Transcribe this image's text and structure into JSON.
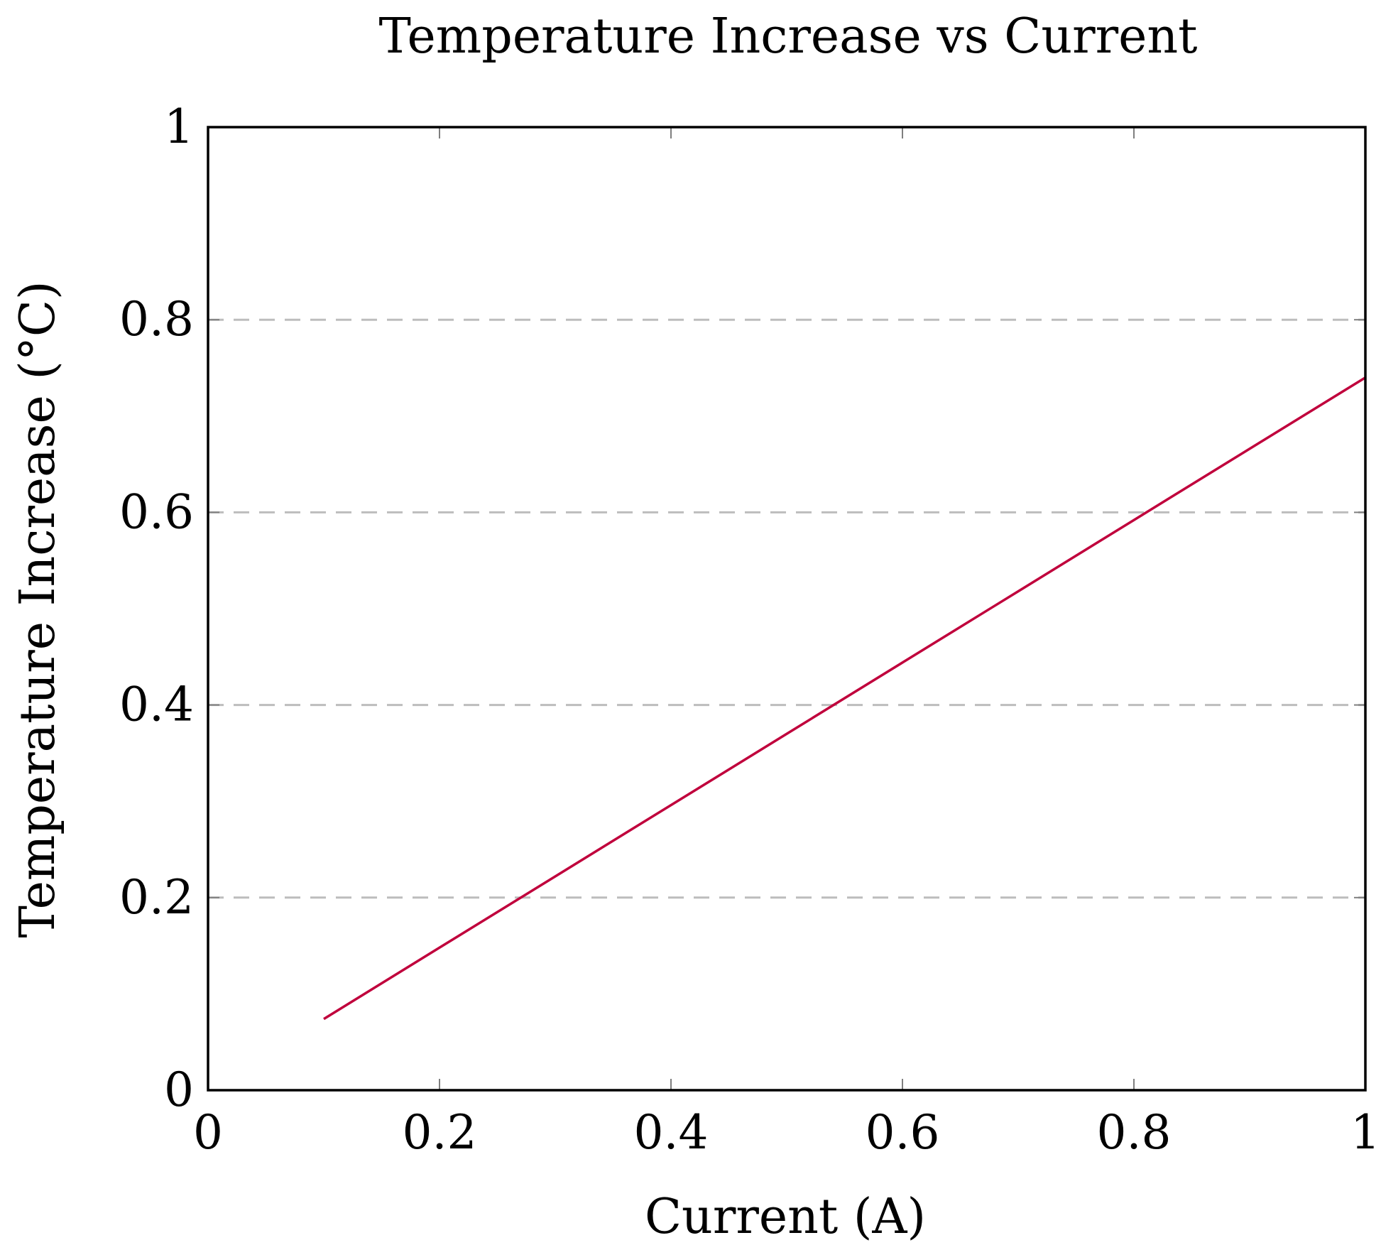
{
  "chart_data": {
    "type": "line",
    "title": "Temperature Increase vs Current",
    "xlabel": "Current (A)",
    "ylabel": "Temperature Increase (°C)",
    "xlim": [
      0,
      1
    ],
    "ylim": [
      0,
      1
    ],
    "x_ticks": [
      0,
      0.2,
      0.4,
      0.6,
      0.8,
      1
    ],
    "x_tick_labels": [
      "0",
      "0.2",
      "0.4",
      "0.6",
      "0.8",
      "1"
    ],
    "y_ticks": [
      0,
      0.2,
      0.4,
      0.6,
      0.8,
      1
    ],
    "y_tick_labels": [
      "0",
      "0.2",
      "0.4",
      "0.6",
      "0.8",
      "1"
    ],
    "grid": {
      "horizontal": true,
      "vertical": false,
      "style": "dashed"
    },
    "series": [
      {
        "name": "Temperature Increase",
        "color": "#c0003c",
        "x": [
          0.1,
          0.2,
          0.3,
          0.4,
          0.5,
          0.6,
          0.7,
          0.8,
          0.9,
          1.0
        ],
        "y": [
          0.074,
          0.148,
          0.222,
          0.296,
          0.37,
          0.444,
          0.518,
          0.592,
          0.666,
          0.74
        ]
      }
    ]
  }
}
